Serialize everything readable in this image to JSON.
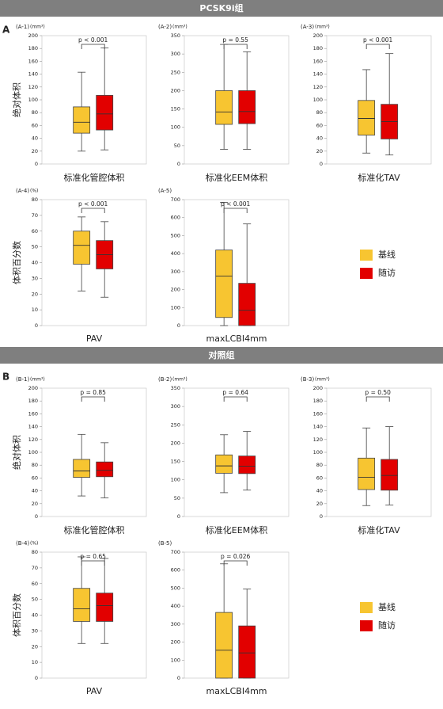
{
  "sections": [
    {
      "title": "PCSK9i组",
      "letter": "A"
    },
    {
      "title": "对照组",
      "letter": "B"
    }
  ],
  "chart_data": [
    {
      "type": "box",
      "panel": "(A-1)",
      "unit": "(mm³)",
      "p_value": "p < 0.001",
      "xlabel": "标准化管腔体积",
      "ylabel": "绝对体积",
      "ylim": [
        0,
        200
      ],
      "yticks": [
        0,
        20,
        40,
        60,
        80,
        100,
        120,
        140,
        160,
        180,
        200
      ],
      "series": [
        {
          "name": "基线",
          "color": "#f7c531",
          "whislo": 20,
          "q1": 48,
          "med": 65,
          "q3": 89,
          "whishi": 143
        },
        {
          "name": "随访",
          "color": "#e20000",
          "whislo": 22,
          "q1": 53,
          "med": 78,
          "q3": 107,
          "whishi": 181
        }
      ]
    },
    {
      "type": "box",
      "panel": "(A-2)",
      "unit": "(mm³)",
      "p_value": "p = 0.55",
      "xlabel": "标准化EEM体积",
      "ylim": [
        0,
        350
      ],
      "yticks": [
        0,
        50,
        100,
        150,
        200,
        250,
        300,
        350
      ],
      "series": [
        {
          "name": "基线",
          "color": "#f7c531",
          "whislo": 40,
          "q1": 108,
          "med": 142,
          "q3": 200,
          "whishi": 326
        },
        {
          "name": "随访",
          "color": "#e20000",
          "whislo": 40,
          "q1": 110,
          "med": 143,
          "q3": 200,
          "whishi": 306
        }
      ]
    },
    {
      "type": "box",
      "panel": "(A-3)",
      "unit": "(mm³)",
      "p_value": "p < 0.001",
      "xlabel": "标准化TAV",
      "ylim": [
        0,
        200
      ],
      "yticks": [
        0,
        20,
        40,
        60,
        80,
        100,
        120,
        140,
        160,
        180,
        200
      ],
      "series": [
        {
          "name": "基线",
          "color": "#f7c531",
          "whislo": 17,
          "q1": 45,
          "med": 71,
          "q3": 99,
          "whishi": 147
        },
        {
          "name": "随访",
          "color": "#e20000",
          "whislo": 14,
          "q1": 39,
          "med": 66,
          "q3": 93,
          "whishi": 172
        }
      ]
    },
    {
      "type": "box",
      "panel": "(A-4)",
      "unit": "(%)",
      "p_value": "p < 0.001",
      "xlabel": "PAV",
      "ylabel": "体积百分数",
      "ylim": [
        0,
        80
      ],
      "yticks": [
        0,
        10,
        20,
        30,
        40,
        50,
        60,
        70,
        80
      ],
      "series": [
        {
          "name": "基线",
          "color": "#f7c531",
          "whislo": 22,
          "q1": 39,
          "med": 51,
          "q3": 60,
          "whishi": 69
        },
        {
          "name": "随访",
          "color": "#e20000",
          "whislo": 18,
          "q1": 36,
          "med": 45,
          "q3": 54,
          "whishi": 66
        }
      ]
    },
    {
      "type": "box",
      "panel": "(A-5)",
      "p_value": "p < 0.001",
      "xlabel": "maxLCBI4mm",
      "ylim": [
        0,
        700
      ],
      "yticks": [
        0,
        100,
        200,
        300,
        400,
        500,
        600,
        700
      ],
      "series": [
        {
          "name": "基线",
          "color": "#f7c531",
          "whislo": 0,
          "q1": 45,
          "med": 275,
          "q3": 420,
          "whishi": 685
        },
        {
          "name": "随访",
          "color": "#e20000",
          "whislo": 0,
          "q1": 0,
          "med": 85,
          "q3": 235,
          "whishi": 565
        }
      ]
    },
    {
      "type": "box",
      "panel": "(B-1)",
      "unit": "(mm³)",
      "p_value": "p = 0.85",
      "xlabel": "标准化管腔体积",
      "ylabel": "绝对体积",
      "ylim": [
        0,
        200
      ],
      "yticks": [
        0,
        20,
        40,
        60,
        80,
        100,
        120,
        140,
        160,
        180,
        200
      ],
      "series": [
        {
          "name": "基线",
          "color": "#f7c531",
          "whislo": 32,
          "q1": 61,
          "med": 71,
          "q3": 89,
          "whishi": 128
        },
        {
          "name": "随访",
          "color": "#e20000",
          "whislo": 29,
          "q1": 62,
          "med": 72,
          "q3": 85,
          "whishi": 115
        }
      ]
    },
    {
      "type": "box",
      "panel": "(B-2)",
      "unit": "(mm³)",
      "p_value": "p = 0.64",
      "xlabel": "标准化EEM体积",
      "ylim": [
        0,
        350
      ],
      "yticks": [
        0,
        50,
        100,
        150,
        200,
        250,
        300,
        350
      ],
      "series": [
        {
          "name": "基线",
          "color": "#f7c531",
          "whislo": 65,
          "q1": 118,
          "med": 138,
          "q3": 168,
          "whishi": 223
        },
        {
          "name": "随访",
          "color": "#e20000",
          "whislo": 72,
          "q1": 117,
          "med": 137,
          "q3": 165,
          "whishi": 232
        }
      ]
    },
    {
      "type": "box",
      "panel": "(B-3)",
      "unit": "(mm³)",
      "p_value": "p = 0.50",
      "xlabel": "标准化TAV",
      "ylim": [
        0,
        200
      ],
      "yticks": [
        0,
        20,
        40,
        60,
        80,
        100,
        120,
        140,
        160,
        180,
        200
      ],
      "series": [
        {
          "name": "基线",
          "color": "#f7c531",
          "whislo": 17,
          "q1": 42,
          "med": 61,
          "q3": 91,
          "whishi": 138
        },
        {
          "name": "随访",
          "color": "#e20000",
          "whislo": 18,
          "q1": 41,
          "med": 64,
          "q3": 89,
          "whishi": 140
        }
      ]
    },
    {
      "type": "box",
      "panel": "(B-4)",
      "unit": "(%)",
      "p_value": "p = 0.65",
      "xlabel": "PAV",
      "ylabel": "体积百分数",
      "ylim": [
        0,
        80
      ],
      "yticks": [
        0,
        10,
        20,
        30,
        40,
        50,
        60,
        70,
        80
      ],
      "series": [
        {
          "name": "基线",
          "color": "#f7c531",
          "whislo": 22,
          "q1": 36,
          "med": 44,
          "q3": 57,
          "whishi": 77
        },
        {
          "name": "随访",
          "color": "#e20000",
          "whislo": 22,
          "q1": 36,
          "med": 46,
          "q3": 54,
          "whishi": 76
        }
      ]
    },
    {
      "type": "box",
      "panel": "(B-5)",
      "p_value": "p = 0.026",
      "xlabel": "maxLCBI4mm",
      "ylim": [
        0,
        700
      ],
      "yticks": [
        0,
        100,
        200,
        300,
        400,
        500,
        600,
        700
      ],
      "series": [
        {
          "name": "基线",
          "color": "#f7c531",
          "whislo": 0,
          "q1": 0,
          "med": 155,
          "q3": 365,
          "whishi": 635
        },
        {
          "name": "随访",
          "color": "#e20000",
          "whislo": 0,
          "q1": 0,
          "med": 140,
          "q3": 290,
          "whishi": 495
        }
      ]
    }
  ]
}
